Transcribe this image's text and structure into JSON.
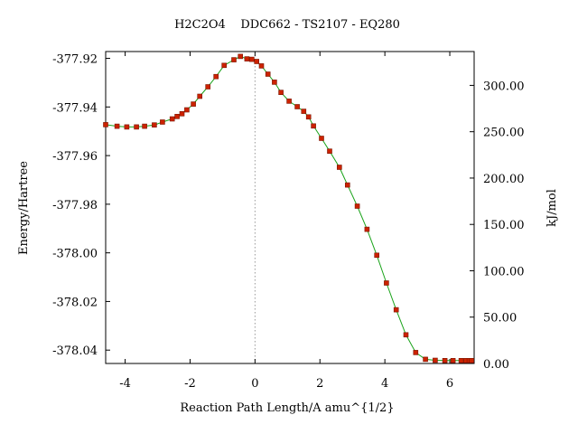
{
  "chart_data": {
    "type": "line",
    "title": "H2C2O4    DDC662 - TS2107 - EQ280",
    "xlabel": "Reaction Path Length/A amu^{1/2}",
    "ylabel": "Energy/Hartree",
    "y2label": "kJ/mol",
    "xlim": [
      -4.6,
      6.75
    ],
    "ylim": [
      -378.0455,
      -377.9172
    ],
    "y2lim": [
      0,
      336.5
    ],
    "xticks": [
      -4,
      -2,
      0,
      2,
      4,
      6
    ],
    "xtick_labels": [
      "-4",
      "-2",
      "0",
      "2",
      "4",
      "6"
    ],
    "yticks": [
      -377.92,
      -377.94,
      -377.96,
      -377.98,
      -378.0,
      -378.02,
      -378.04
    ],
    "ytick_labels": [
      "-377.92",
      "-377.94",
      "-377.96",
      "-377.98",
      "-378.00",
      "-378.02",
      "-378.04"
    ],
    "y2ticks": [
      0,
      50,
      100,
      150,
      200,
      250,
      300
    ],
    "y2tick_labels": [
      "0.00",
      "50.00",
      "100.00",
      "150.00",
      "200.00",
      "250.00",
      "300.00"
    ],
    "ts_marker_x": 0,
    "grid": false,
    "line_color": "#1aa31a",
    "marker_color": "#cc2200",
    "marker_edge_color": "#7a1400",
    "ts_line_color": "#999999",
    "series": [
      {
        "x": [
          -4.6,
          -4.25,
          -3.95,
          -3.65,
          -3.4,
          -3.1,
          -2.85,
          -2.55,
          -2.4,
          -2.25,
          -2.1,
          -1.9,
          -1.7,
          -1.45,
          -1.2,
          -0.95,
          -0.65,
          -0.45,
          -0.25,
          -0.1,
          0.05,
          0.2,
          0.4,
          0.6,
          0.8,
          1.05,
          1.3,
          1.5,
          1.65,
          1.8,
          2.05,
          2.3,
          2.6,
          2.85,
          3.15,
          3.45,
          3.75,
          4.05,
          4.35,
          4.65,
          4.95,
          5.25,
          5.55,
          5.85,
          6.1,
          6.35,
          6.5,
          6.6,
          6.67
        ],
        "y": [
          -377.9473,
          -377.9479,
          -377.9482,
          -377.9482,
          -377.9479,
          -377.9474,
          -377.9462,
          -377.9449,
          -377.9439,
          -377.9428,
          -377.9412,
          -377.9388,
          -377.9356,
          -377.9317,
          -377.9275,
          -377.9229,
          -377.9206,
          -377.9192,
          -377.9202,
          -377.9204,
          -377.9213,
          -377.9231,
          -377.9265,
          -377.9298,
          -377.934,
          -377.9376,
          -377.9399,
          -377.9418,
          -377.9441,
          -377.9478,
          -377.9529,
          -377.9582,
          -377.9648,
          -377.9721,
          -377.9808,
          -377.9903,
          -378.001,
          -378.0124,
          -378.0234,
          -378.0337,
          -378.041,
          -378.0438,
          -378.0442,
          -378.0443,
          -378.0443,
          -378.0443,
          -378.0443,
          -378.0443,
          -378.0443
        ]
      }
    ]
  }
}
